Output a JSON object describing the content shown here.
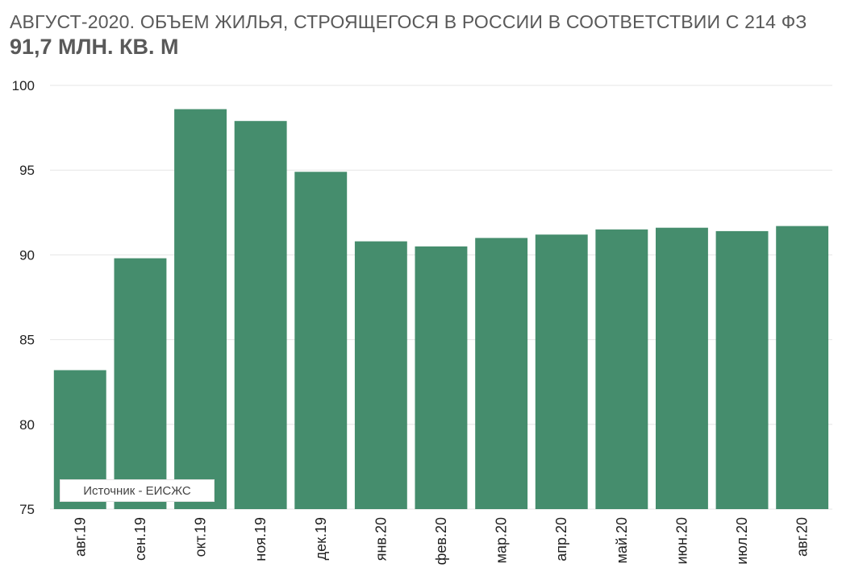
{
  "chart_data": {
    "type": "bar",
    "title": "АВГУСТ-2020. ОБЪЕМ ЖИЛЬЯ, СТРОЯЩЕГОСЯ В РОССИИ В СООТВЕТСТВИИ С 214 ФЗ",
    "subtitle": "91,7 МЛН. КВ. М",
    "categories": [
      "авг.19",
      "сен.19",
      "окт.19",
      "ноя.19",
      "дек.19",
      "янв.20",
      "фев.20",
      "мар.20",
      "апр.20",
      "май.20",
      "июн.20",
      "июл.20",
      "авг.20"
    ],
    "values": [
      83.2,
      89.8,
      98.6,
      97.9,
      94.9,
      90.8,
      90.5,
      91.0,
      91.2,
      91.5,
      91.6,
      91.4,
      91.7
    ],
    "ylim": [
      75,
      100
    ],
    "yticks": [
      75,
      80,
      85,
      90,
      95,
      100
    ],
    "xlabel": "",
    "ylabel": "",
    "grid": true,
    "bar_color": "#458d6d",
    "grid_color": "#e6e6e6"
  },
  "source_note": "Источник - ЕИСЖС"
}
